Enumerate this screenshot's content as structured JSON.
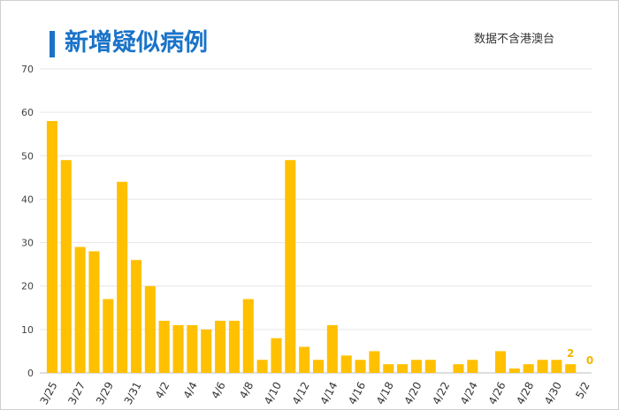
{
  "header": {
    "title": "新增疑似病例",
    "note": "数据不含港澳台"
  },
  "colors": {
    "bar": "#ffc000",
    "title": "#1a73c8",
    "label": "#f2b705",
    "grid": "#e6e6e6"
  },
  "chart_data": {
    "type": "bar",
    "title": "新增疑似病例",
    "xlabel": "",
    "ylabel": "",
    "ylim": [
      0,
      70
    ],
    "yticks": [
      0,
      10,
      20,
      30,
      40,
      50,
      60,
      70
    ],
    "grid": true,
    "legend": "none",
    "categories": [
      "3/25",
      "3/26",
      "3/27",
      "3/28",
      "3/29",
      "3/30",
      "3/31",
      "4/1",
      "4/2",
      "4/3",
      "4/4",
      "4/5",
      "4/6",
      "4/7",
      "4/8",
      "4/9",
      "4/10",
      "4/11",
      "4/12",
      "4/13",
      "4/14",
      "4/15",
      "4/16",
      "4/17",
      "4/18",
      "4/19",
      "4/20",
      "4/21",
      "4/22",
      "4/23",
      "4/24",
      "4/25",
      "4/26",
      "4/27",
      "4/28",
      "4/29",
      "4/30",
      "5/1",
      "5/2"
    ],
    "tick_labels": [
      "3/25",
      "",
      "3/27",
      "",
      "3/29",
      "",
      "3/31",
      "",
      "4/2",
      "",
      "4/4",
      "",
      "4/6",
      "",
      "4/8",
      "",
      "4/10",
      "",
      "4/12",
      "",
      "4/14",
      "",
      "4/16",
      "",
      "4/18",
      "",
      "4/20",
      "",
      "4/22",
      "",
      "4/24",
      "",
      "4/26",
      "",
      "4/28",
      "",
      "4/30",
      "",
      "5/2"
    ],
    "values": [
      58,
      49,
      29,
      28,
      17,
      44,
      26,
      20,
      12,
      11,
      11,
      10,
      12,
      12,
      17,
      3,
      8,
      49,
      6,
      3,
      11,
      4,
      3,
      5,
      2,
      2,
      3,
      3,
      0,
      2,
      3,
      0,
      5,
      1,
      2,
      3,
      3,
      2,
      0
    ],
    "data_labels": [
      {
        "category": "5/1",
        "text": "2"
      },
      {
        "category": "5/2",
        "text": "0"
      }
    ]
  }
}
